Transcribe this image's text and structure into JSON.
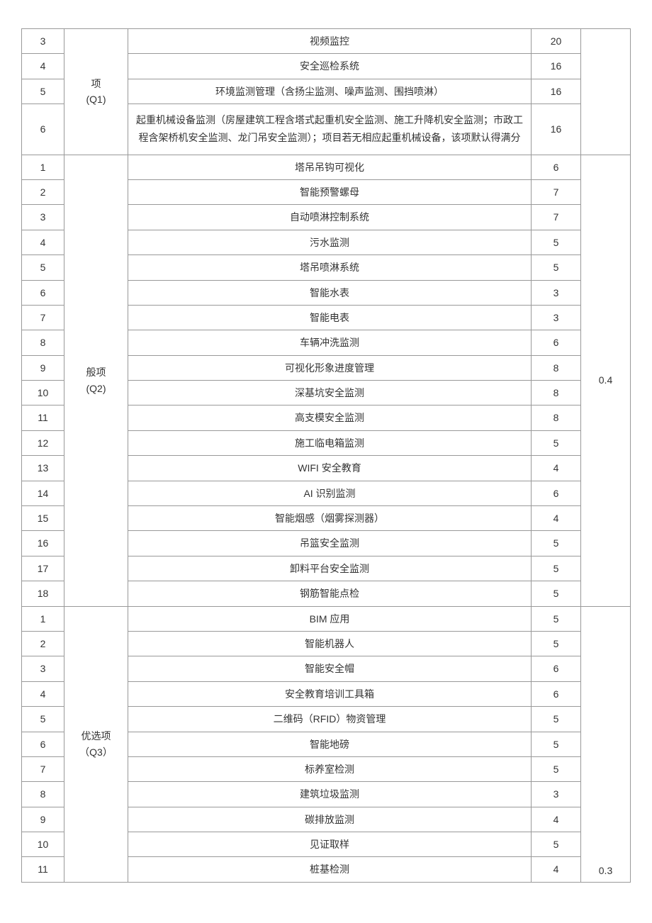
{
  "colors": {
    "border": "#999999",
    "text": "#333333",
    "background": "#ffffff"
  },
  "typography": {
    "fontsize_pt": 14,
    "line_height": 1.6
  },
  "column_widths": {
    "index": 60,
    "category": 90,
    "score": 70,
    "weight": 70
  },
  "sections": [
    {
      "category_label": "项\n(Q1)",
      "weight": "",
      "rows": [
        {
          "idx": "3",
          "item": "视频监控",
          "score": "20"
        },
        {
          "idx": "4",
          "item": "安全巡检系统",
          "score": "16"
        },
        {
          "idx": "5",
          "item": "环境监测管理（含扬尘监测、噪声监测、围挡喷淋）",
          "score": "16"
        },
        {
          "idx": "6",
          "item": "起重机械设备监测（房屋建筑工程含塔式起重机安全监测、施工升降机安全监测；市政工程含架桥机安全监测、龙门吊安全监测）；项目若无相应起重机械设备，该项默认得满分",
          "score": "16"
        }
      ]
    },
    {
      "category_label": "般项\n(Q2)",
      "weight": "0.4",
      "rows": [
        {
          "idx": "1",
          "item": "塔吊吊钩可视化",
          "score": "6"
        },
        {
          "idx": "2",
          "item": "智能预警螺母",
          "score": "7"
        },
        {
          "idx": "3",
          "item": "自动喷淋控制系统",
          "score": "7"
        },
        {
          "idx": "4",
          "item": "污水监测",
          "score": "5"
        },
        {
          "idx": "5",
          "item": "塔吊喷淋系统",
          "score": "5"
        },
        {
          "idx": "6",
          "item": "智能水表",
          "score": "3"
        },
        {
          "idx": "7",
          "item": "智能电表",
          "score": "3"
        },
        {
          "idx": "8",
          "item": "车辆冲洗监测",
          "score": "6"
        },
        {
          "idx": "9",
          "item": "可视化形象进度管理",
          "score": "8"
        },
        {
          "idx": "10",
          "item": "深基坑安全监测",
          "score": "8"
        },
        {
          "idx": "11",
          "item": "高支模安全监测",
          "score": "8"
        },
        {
          "idx": "12",
          "item": "施工临电箱监测",
          "score": "5"
        },
        {
          "idx": "13",
          "item": "WIFI 安全教育",
          "score": "4"
        },
        {
          "idx": "14",
          "item": "AI 识别监测",
          "score": "6"
        },
        {
          "idx": "15",
          "item": "智能烟感（烟雾探测器）",
          "score": "4"
        },
        {
          "idx": "16",
          "item": "吊篮安全监测",
          "score": "5"
        },
        {
          "idx": "17",
          "item": "卸料平台安全监测",
          "score": "5"
        },
        {
          "idx": "18",
          "item": "钢筋智能点检",
          "score": "5"
        }
      ]
    },
    {
      "category_label": "优选项（Q3）",
      "weight": "0.3",
      "weight_align": "bottom",
      "rows": [
        {
          "idx": "1",
          "item": "BIM 应用",
          "score": "5"
        },
        {
          "idx": "2",
          "item": "智能机器人",
          "score": "5"
        },
        {
          "idx": "3",
          "item": "智能安全帽",
          "score": "6"
        },
        {
          "idx": "4",
          "item": "安全教育培训工具箱",
          "score": "6"
        },
        {
          "idx": "5",
          "item": "二维码（RFID）物资管理",
          "score": "5"
        },
        {
          "idx": "6",
          "item": "智能地磅",
          "score": "5"
        },
        {
          "idx": "7",
          "item": "标养室检测",
          "score": "5"
        },
        {
          "idx": "8",
          "item": "建筑垃圾监测",
          "score": "3"
        },
        {
          "idx": "9",
          "item": "碳排放监测",
          "score": "4"
        },
        {
          "idx": "10",
          "item": "见证取样",
          "score": "5"
        },
        {
          "idx": "11",
          "item": "桩基检测",
          "score": "4"
        }
      ]
    }
  ]
}
